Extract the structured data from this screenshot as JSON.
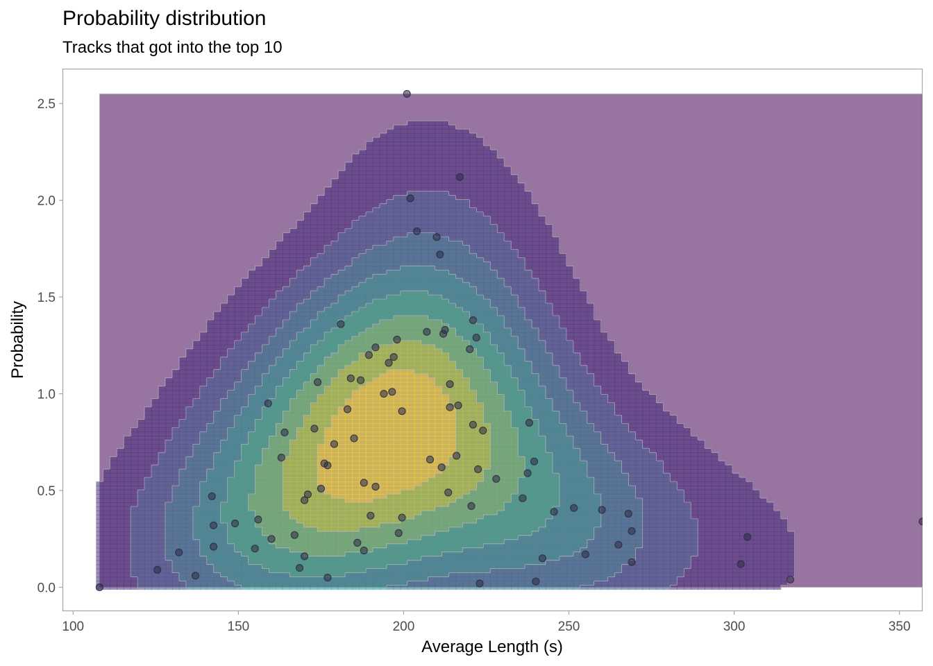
{
  "chart_data": {
    "type": "scatter",
    "title": "Probability distribution",
    "subtitle": "Tracks that got into the top 10",
    "xlabel": "Average Length (s)",
    "ylabel": "Probability",
    "xlim": [
      97,
      357
    ],
    "ylim": [
      -0.12,
      2.68
    ],
    "x_ticks": [
      100,
      150,
      200,
      250,
      300,
      350
    ],
    "y_ticks": [
      0.0,
      0.5,
      1.0,
      1.5,
      2.0,
      2.5
    ],
    "x_tick_labels": [
      "100",
      "150",
      "200",
      "250",
      "300",
      "350"
    ],
    "y_tick_labels": [
      "0.0",
      "0.5",
      "1.0",
      "1.5",
      "2.0",
      "2.5"
    ],
    "grid": false,
    "overlay": "2d density contours (viridis filled levels)",
    "colors": {
      "density_background": "#440154",
      "density_levels": [
        "#472d7b",
        "#3b528b",
        "#2c728e",
        "#21918c",
        "#28ae80",
        "#5ec962",
        "#addc30",
        "#fde725"
      ],
      "contour_line": "#bdbdbd",
      "point": "#2d2b45"
    },
    "points": [
      {
        "x": 108,
        "y": 0.0
      },
      {
        "x": 125.5,
        "y": 0.09
      },
      {
        "x": 132,
        "y": 0.18
      },
      {
        "x": 137,
        "y": 0.06
      },
      {
        "x": 142,
        "y": 0.47
      },
      {
        "x": 142.5,
        "y": 0.32
      },
      {
        "x": 142.5,
        "y": 0.21
      },
      {
        "x": 149,
        "y": 0.33
      },
      {
        "x": 155,
        "y": 0.2
      },
      {
        "x": 156,
        "y": 0.35
      },
      {
        "x": 159,
        "y": 0.95
      },
      {
        "x": 160,
        "y": 0.25
      },
      {
        "x": 163,
        "y": 0.67
      },
      {
        "x": 164,
        "y": 0.8
      },
      {
        "x": 167,
        "y": 0.27
      },
      {
        "x": 168.5,
        "y": 0.1
      },
      {
        "x": 170,
        "y": 0.16
      },
      {
        "x": 170,
        "y": 0.45
      },
      {
        "x": 171,
        "y": 0.48
      },
      {
        "x": 173,
        "y": 0.82
      },
      {
        "x": 174,
        "y": 1.06
      },
      {
        "x": 175,
        "y": 0.51
      },
      {
        "x": 176,
        "y": 0.64
      },
      {
        "x": 177,
        "y": 0.63
      },
      {
        "x": 177,
        "y": 0.05
      },
      {
        "x": 179,
        "y": 0.74
      },
      {
        "x": 181,
        "y": 1.36
      },
      {
        "x": 183,
        "y": 0.92
      },
      {
        "x": 184,
        "y": 1.08
      },
      {
        "x": 185,
        "y": 0.77
      },
      {
        "x": 186,
        "y": 0.23
      },
      {
        "x": 187,
        "y": 1.07
      },
      {
        "x": 188,
        "y": 0.19
      },
      {
        "x": 188,
        "y": 0.54
      },
      {
        "x": 189.5,
        "y": 1.2
      },
      {
        "x": 190,
        "y": 0.37
      },
      {
        "x": 191.5,
        "y": 0.52
      },
      {
        "x": 191.5,
        "y": 1.24
      },
      {
        "x": 194,
        "y": 1.0
      },
      {
        "x": 195.5,
        "y": 1.16
      },
      {
        "x": 196.5,
        "y": 1.01
      },
      {
        "x": 197,
        "y": 1.19
      },
      {
        "x": 198,
        "y": 1.28
      },
      {
        "x": 198.5,
        "y": 0.28
      },
      {
        "x": 199.5,
        "y": 0.36
      },
      {
        "x": 199.5,
        "y": 0.91
      },
      {
        "x": 201,
        "y": 2.55
      },
      {
        "x": 202,
        "y": 2.01
      },
      {
        "x": 204,
        "y": 1.84
      },
      {
        "x": 207,
        "y": 1.32
      },
      {
        "x": 208,
        "y": 0.66
      },
      {
        "x": 210,
        "y": 1.81
      },
      {
        "x": 211,
        "y": 1.72
      },
      {
        "x": 211.5,
        "y": 0.62
      },
      {
        "x": 212,
        "y": 1.31
      },
      {
        "x": 212.5,
        "y": 1.33
      },
      {
        "x": 213.5,
        "y": 0.49
      },
      {
        "x": 214,
        "y": 1.05
      },
      {
        "x": 214,
        "y": 0.93
      },
      {
        "x": 216,
        "y": 0.68
      },
      {
        "x": 216.5,
        "y": 0.94
      },
      {
        "x": 217,
        "y": 2.12
      },
      {
        "x": 220,
        "y": 1.23
      },
      {
        "x": 220.5,
        "y": 0.42
      },
      {
        "x": 221,
        "y": 1.38
      },
      {
        "x": 221,
        "y": 0.84
      },
      {
        "x": 222,
        "y": 1.29
      },
      {
        "x": 222.5,
        "y": 0.61
      },
      {
        "x": 223,
        "y": 0.02
      },
      {
        "x": 224,
        "y": 0.81
      },
      {
        "x": 228,
        "y": 0.56
      },
      {
        "x": 236,
        "y": 0.46
      },
      {
        "x": 237.5,
        "y": 0.59
      },
      {
        "x": 238,
        "y": 0.85
      },
      {
        "x": 239.5,
        "y": 0.65
      },
      {
        "x": 240,
        "y": 0.03
      },
      {
        "x": 242,
        "y": 0.15
      },
      {
        "x": 245.5,
        "y": 0.39
      },
      {
        "x": 251.5,
        "y": 0.41
      },
      {
        "x": 255,
        "y": 0.17
      },
      {
        "x": 260,
        "y": 0.4
      },
      {
        "x": 265,
        "y": 0.22
      },
      {
        "x": 268,
        "y": 0.38
      },
      {
        "x": 269,
        "y": 0.29
      },
      {
        "x": 269,
        "y": 0.13
      },
      {
        "x": 302,
        "y": 0.12
      },
      {
        "x": 304,
        "y": 0.26
      },
      {
        "x": 317,
        "y": 0.04
      },
      {
        "x": 357,
        "y": 0.34
      }
    ]
  }
}
